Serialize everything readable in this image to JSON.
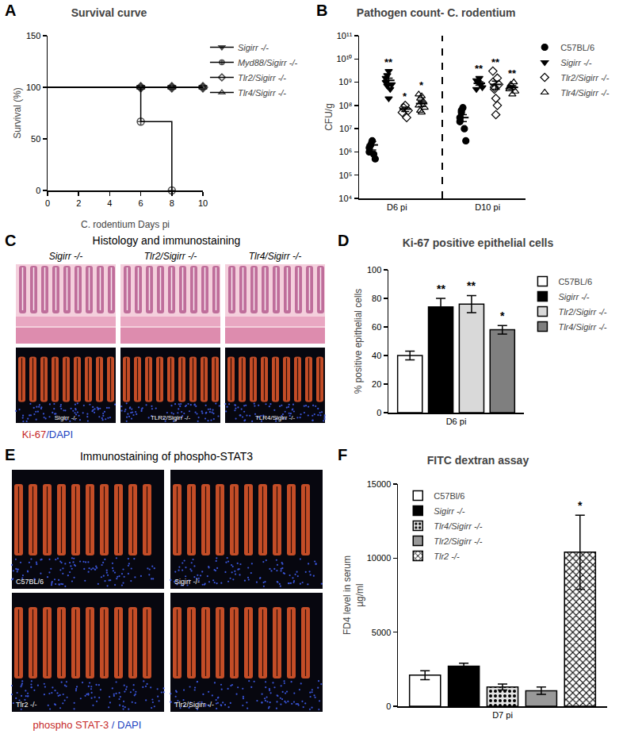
{
  "chart_data": [
    {
      "panel": "A",
      "type": "line",
      "title": "Survival curve",
      "x_label": "C. rodentium Days pi",
      "y_label": "Survival (%)",
      "xlim": [
        0,
        10
      ],
      "xticks": [
        0,
        2,
        4,
        6,
        8,
        10
      ],
      "ylim": [
        0,
        150
      ],
      "yticks": [
        0,
        50,
        100,
        150
      ],
      "grid": false,
      "legend": "right",
      "line_style": "step",
      "series": [
        {
          "name": "Sigirr -/-",
          "marker": "triangle-down",
          "color": "#000000",
          "x": [
            0,
            6,
            8,
            10
          ],
          "values": [
            100,
            100,
            100,
            100
          ]
        },
        {
          "name": "Myd88/Sigirr -/-",
          "marker": "circle-cross-open",
          "color": "#000000",
          "x": [
            0,
            6,
            8
          ],
          "values": [
            100,
            66.7,
            0
          ]
        },
        {
          "name": "Tlr2/Sigirr -/-",
          "marker": "diamond-open",
          "color": "#000000",
          "x": [
            0,
            6,
            8,
            10
          ],
          "values": [
            100,
            100,
            100,
            100
          ]
        },
        {
          "name": "Tlr4/Sigirr -/-",
          "marker": "triangle-up-open",
          "color": "#000000",
          "x": [
            0,
            6,
            8,
            10
          ],
          "values": [
            100,
            100,
            100,
            100
          ]
        }
      ]
    },
    {
      "panel": "B",
      "type": "scatter",
      "title": "Pathogen count- C. rodentium",
      "y_label": "CFU/g",
      "log": "y",
      "ylim": [
        10000,
        100000000000
      ],
      "yticks": [
        {
          "value": 10000,
          "label": "10⁴"
        },
        {
          "value": 100000,
          "label": "10⁵"
        },
        {
          "value": 1000000,
          "label": "10⁶"
        },
        {
          "value": 10000000,
          "label": "10⁷"
        },
        {
          "value": 100000000,
          "label": "10⁸"
        },
        {
          "value": 1000000000,
          "label": "10⁹"
        },
        {
          "value": 10000000000,
          "label": "10¹⁰"
        },
        {
          "value": 100000000000,
          "label": "10¹¹"
        }
      ],
      "categories": [
        "D6 pi",
        "D10 pi"
      ],
      "grid": false,
      "legend": "right",
      "series": [
        {
          "name": "C57BL/6",
          "marker": "circle",
          "color": "#000000",
          "values": [
            [
              1000000,
              2000000,
              3000000,
              800000,
              500000,
              1500000
            ],
            [
              30000000,
              50000000,
              80000000,
              10000000,
              3000000,
              20000000,
              60000000
            ]
          ],
          "means": [
            2000000,
            30000000
          ],
          "errors": [
            800000,
            10000000
          ]
        },
        {
          "name": "Sigirr -/-",
          "marker": "triangle-down",
          "color": "#000000",
          "values": [
            [
              1000000000,
              2000000000,
              3000000000,
              500000000,
              800000000,
              1500000000,
              700000000,
              200000000
            ],
            [
              500000000,
              1000000000,
              1500000000,
              800000000,
              600000000,
              1200000000
            ]
          ],
          "means": [
            1200000000,
            900000000
          ],
          "errors": [
            300000000,
            150000000
          ],
          "significance": [
            "**",
            "**"
          ]
        },
        {
          "name": "Tlr2/Sigirr -/-",
          "marker": "diamond-open",
          "color": "#000000",
          "values": [
            [
              50000000,
              80000000,
              100000000,
              30000000,
              60000000
            ],
            [
              1000000000,
              500000000,
              200000000,
              100000000,
              800000000,
              3000000000,
              600000000,
              40000000,
              1500000000
            ]
          ],
          "means": [
            70000000,
            800000000
          ],
          "errors": [
            15000000,
            300000000
          ],
          "significance": [
            "*",
            "**"
          ]
        },
        {
          "name": "Tlr4/Sigirr -/-",
          "marker": "triangle-up-open",
          "color": "#000000",
          "values": [
            [
              100000000,
              200000000,
              50000000,
              150000000,
              80000000,
              300000000,
              60000000,
              250000000
            ],
            [
              500000000,
              800000000,
              300000000,
              1000000000,
              400000000,
              600000000
            ]
          ],
          "means": [
            120000000,
            600000000
          ],
          "errors": [
            30000000,
            100000000
          ],
          "significance": [
            "*",
            "**"
          ]
        }
      ]
    },
    {
      "panel": "D",
      "type": "bar",
      "title": "Ki-67 positive epithelial cells",
      "y_label": "% positive epithelial cells",
      "categories": [
        "D6 pi"
      ],
      "ylim": [
        0,
        100
      ],
      "yticks": [
        0,
        20,
        40,
        60,
        80,
        100
      ],
      "grid": false,
      "legend": "right",
      "series": [
        {
          "name": "C57BL/6",
          "color": "#ffffff",
          "values": [
            40
          ],
          "errors": [
            3
          ]
        },
        {
          "name": "Sigirr -/-",
          "color": "#000000",
          "values": [
            74
          ],
          "errors": [
            6
          ],
          "significance": [
            "**"
          ]
        },
        {
          "name": "Tlr2/Sigirr -/-",
          "color": "#d9d9d9",
          "values": [
            76
          ],
          "errors": [
            6
          ],
          "significance": [
            "**"
          ]
        },
        {
          "name": "Tlr4/Sigirr -/-",
          "color": "#7f7f7f",
          "values": [
            58
          ],
          "errors": [
            3
          ],
          "significance": [
            "*"
          ]
        }
      ]
    },
    {
      "panel": "F",
      "type": "bar",
      "title": "FITC dextran assay",
      "y_label": [
        "FD4 level in serum",
        "µg/ml"
      ],
      "categories": [
        "D7 pi"
      ],
      "ylim": [
        0,
        15000
      ],
      "yticks": [
        0,
        5000,
        10000,
        15000
      ],
      "grid": false,
      "legend": "top left",
      "series": [
        {
          "name": "C57Bl/6",
          "color": "#ffffff",
          "values": [
            2100
          ],
          "errors": [
            300
          ]
        },
        {
          "name": "Sigirr -/-",
          "color": "#000000",
          "values": [
            2700
          ],
          "errors": [
            200
          ]
        },
        {
          "name": "Tlr4/Sigirr -/-",
          "color": "#e6e6e6",
          "marker": "dots",
          "values": [
            1300
          ],
          "errors": [
            200
          ]
        },
        {
          "name": "Tlr2/Sigirr -/-",
          "color": "#999999",
          "values": [
            1050
          ],
          "errors": [
            250
          ]
        },
        {
          "name": "Tlr2 -/-",
          "color": "#ffffff",
          "marker": "checker",
          "values": [
            10400
          ],
          "errors": [
            2500
          ],
          "significance": [
            "*"
          ]
        }
      ]
    }
  ],
  "image_panels": [
    {
      "panel": "C",
      "title": "Histology and immunostaining",
      "columns": [
        "Sigirr -/-",
        "Tlr2/Sigirr -/-",
        "Tlr4/Sigirr -/-"
      ],
      "inset_labels": [
        "Sigirr -/-",
        "TLR2/Sigirr -/-",
        "TLR4/Sigirr -/-"
      ],
      "stain_label": [
        {
          "text": "Ki-67",
          "color": "#c62828"
        },
        {
          "text": "/DAPI",
          "color": "#1a3fbf"
        }
      ]
    },
    {
      "panel": "E",
      "title": "Immunostaining  of phospho-STAT3",
      "inset_labels": [
        "C57BL/6",
        "Sigirr -/-",
        "Tlr2 -/-",
        "Tlr2/Sigirr -/-"
      ],
      "stain_label": [
        {
          "text": "phospho STAT-3",
          "color": "#c62828"
        },
        {
          "text": " / DAPI",
          "color": "#1a3fbf"
        }
      ]
    }
  ]
}
